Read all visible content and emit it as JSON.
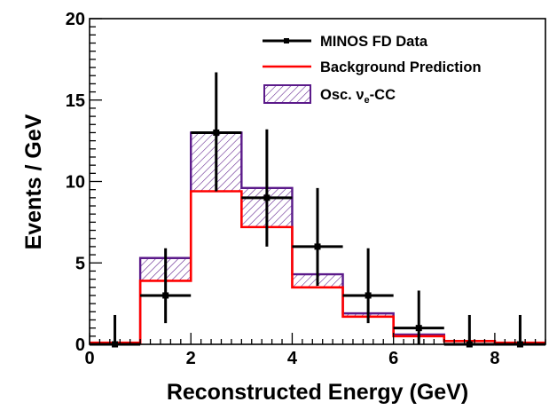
{
  "chart_data": {
    "type": "histogram",
    "xlabel": "Reconstructed Energy (GeV)",
    "ylabel": "Events / GeV",
    "xlim": [
      0,
      9
    ],
    "ylim": [
      0,
      20
    ],
    "x_ticks": [
      "0",
      "2",
      "4",
      "6",
      "8"
    ],
    "y_ticks": [
      "0",
      "5",
      "10",
      "15",
      "20"
    ],
    "bin_edges": [
      0,
      1,
      2,
      3,
      4,
      5,
      6,
      7,
      8,
      9
    ],
    "series": [
      {
        "name": "MINOS FD Data",
        "kind": "points",
        "color": "#000000",
        "x": [
          0.5,
          1.5,
          2.5,
          3.5,
          4.5,
          5.5,
          6.5,
          7.5,
          8.5
        ],
        "y": [
          0,
          3,
          13,
          9,
          6,
          3,
          1,
          0,
          0
        ],
        "err_low": [
          0,
          1.7,
          3.6,
          3.0,
          2.4,
          1.7,
          1.0,
          0,
          0
        ],
        "err_high": [
          1.8,
          2.9,
          3.7,
          4.2,
          3.6,
          2.9,
          2.3,
          1.8,
          1.8
        ]
      },
      {
        "name": "Background Prediction",
        "kind": "step",
        "color": "#ff0000",
        "values": [
          0.1,
          3.9,
          9.4,
          7.2,
          3.5,
          1.7,
          0.5,
          0.2,
          0.1
        ]
      },
      {
        "name": "Osc. ν_e-CC",
        "kind": "hatched-step",
        "color": "#5b1a8a",
        "values": [
          0.1,
          5.3,
          13.0,
          9.6,
          4.3,
          1.9,
          0.6,
          0.2,
          0.1
        ]
      }
    ],
    "legend": {
      "position": "top-right",
      "entries": [
        {
          "label": "MINOS FD Data"
        },
        {
          "label": "Background Prediction"
        },
        {
          "label_main": "Osc. ν",
          "label_sub": "e",
          "label_tail": "-CC"
        }
      ]
    }
  }
}
